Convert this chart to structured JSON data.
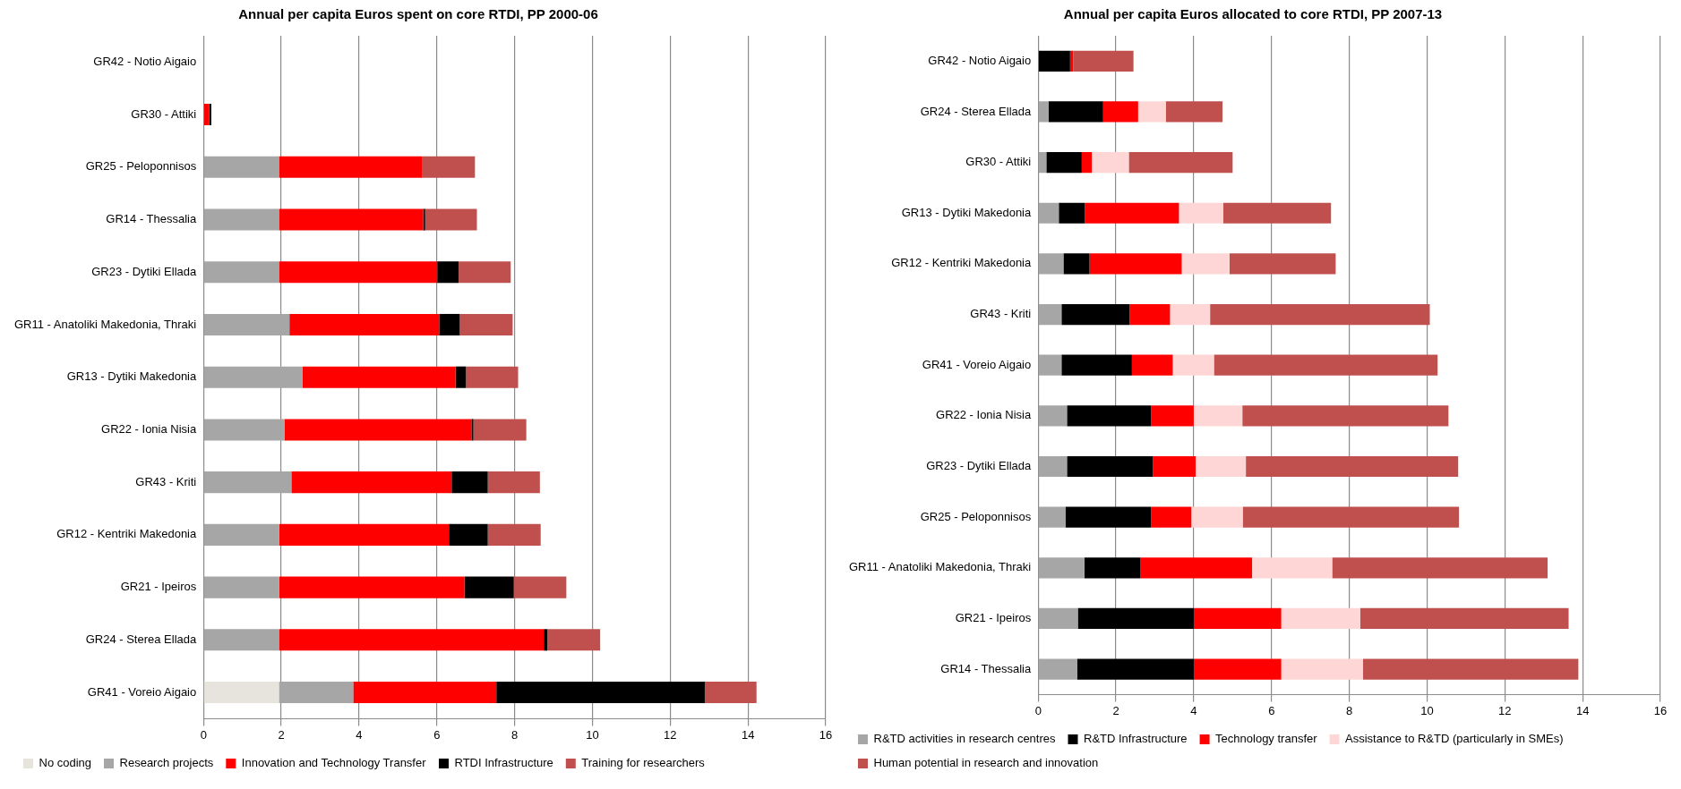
{
  "chart_data": [
    {
      "type": "bar",
      "orientation": "horizontal",
      "stacked": true,
      "title": "Annual per capita Euros spent on core RTDI, PP 2000-06",
      "categories": [
        "GR42 - Notio Aigaio",
        "GR30 - Attiki",
        "GR25 - Peloponnisos",
        "GR14 - Thessalia",
        "GR23 - Dytiki Ellada",
        "GR11 - Anatoliki Makedonia, Thraki",
        "GR13 - Dytiki Makedonia",
        "GR22 - Ionia Nisia",
        "GR43 - Kriti",
        "GR12 - Kentriki Makedonia",
        "GR21 - Ipeiros",
        "GR24 - Sterea Ellada",
        "GR41 - Voreio Aigaio"
      ],
      "series": [
        {
          "name": "No coding",
          "color": "#e6e4dc",
          "values": [
            0,
            0,
            0,
            0,
            0,
            0,
            0,
            0,
            0,
            0,
            0,
            0,
            1.94
          ]
        },
        {
          "name": "Research projects",
          "color": "#a6a6a6",
          "values": [
            0,
            0,
            1.94,
            1.94,
            1.94,
            2.21,
            2.55,
            2.08,
            2.26,
            1.95,
            1.95,
            1.94,
            1.91
          ]
        },
        {
          "name": "Innovation and Technology Transfer",
          "color": "#ff0000",
          "values": [
            0,
            0.15,
            3.69,
            3.71,
            4.07,
            3.85,
            3.93,
            4.81,
            4.12,
            4.36,
            4.76,
            6.81,
            3.68
          ]
        },
        {
          "name": "RTDI Infrastructure",
          "color": "#000000",
          "values": [
            0,
            0.05,
            0,
            0.05,
            0.55,
            0.53,
            0.27,
            0.05,
            0.93,
            1.0,
            1.27,
            0.09,
            5.36
          ]
        },
        {
          "name": "Training for researchers",
          "color": "#c0504d",
          "values": [
            0,
            0,
            1.35,
            1.33,
            1.34,
            1.36,
            1.34,
            1.36,
            1.34,
            1.36,
            1.35,
            1.36,
            1.33
          ]
        }
      ],
      "xlim": [
        0,
        16
      ],
      "xticks": [
        0,
        2,
        4,
        6,
        8,
        10,
        12,
        14,
        16
      ],
      "grid": "x",
      "legend": "bottom"
    },
    {
      "type": "bar",
      "orientation": "horizontal",
      "stacked": true,
      "title": "Annual per capita Euros allocated to core RTDI, PP 2007-13",
      "categories": [
        "GR42 - Notio Aigaio",
        "GR24 - Sterea Ellada",
        "GR30 - Attiki",
        "GR13 - Dytiki Makedonia",
        "GR12 - Kentriki Makedonia",
        "GR43 - Kriti",
        "GR41 - Voreio Aigaio",
        "GR22 - Ionia Nisia",
        "GR23 - Dytiki Ellada",
        "GR25 - Peloponnisos",
        "GR11 - Anatoliki Makedonia, Thraki",
        "GR21 - Ipeiros",
        "GR14 - Thessalia"
      ],
      "series": [
        {
          "name": "R&TD activities in research centres",
          "color": "#a6a6a6",
          "values": [
            0,
            0.27,
            0.21,
            0.53,
            0.65,
            0.6,
            0.6,
            0.74,
            0.74,
            0.7,
            1.19,
            1.02,
            1.0
          ]
        },
        {
          "name": "R&TD Infrastructure",
          "color": "#000000",
          "values": [
            0.82,
            1.4,
            0.91,
            0.67,
            0.67,
            1.75,
            1.81,
            2.16,
            2.21,
            2.2,
            1.43,
            2.98,
            3.0
          ]
        },
        {
          "name": "Technology transfer",
          "color": "#ff0000",
          "values": [
            0.08,
            0.9,
            0.26,
            2.42,
            2.37,
            1.04,
            1.05,
            1.1,
            1.1,
            1.04,
            2.88,
            2.25,
            2.25
          ]
        },
        {
          "name": "Assistance to R&TD (particularly in SMEs)",
          "color": "#ffd6d6",
          "values": [
            0,
            0.71,
            0.95,
            1.14,
            1.23,
            1.03,
            1.06,
            1.25,
            1.29,
            1.32,
            2.06,
            2.03,
            2.1
          ]
        },
        {
          "name": "Human potential in research and innovation",
          "color": "#c0504d",
          "values": [
            1.55,
            1.46,
            2.67,
            2.77,
            2.73,
            5.65,
            5.75,
            5.3,
            5.46,
            5.56,
            5.54,
            5.36,
            5.54
          ]
        }
      ],
      "xlim": [
        0,
        16
      ],
      "xticks": [
        0,
        2,
        4,
        6,
        8,
        10,
        12,
        14,
        16
      ],
      "grid": "x",
      "legend": "bottom"
    }
  ]
}
